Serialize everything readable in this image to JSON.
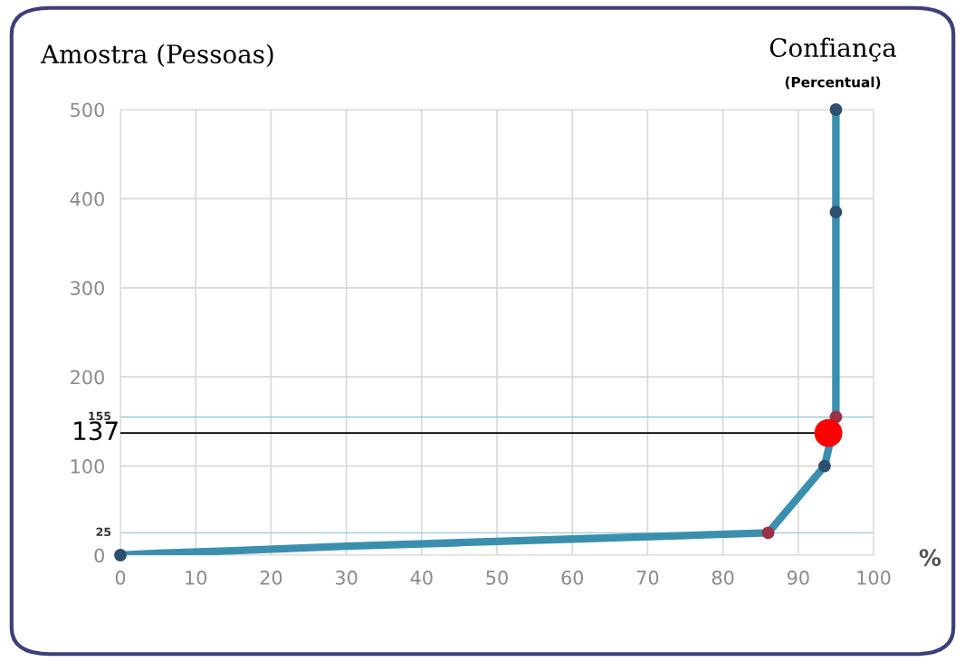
{
  "chart_data": {
    "type": "line",
    "ylabel": "Amostra (Pessoas)",
    "xlabel": "%",
    "annotations": [
      "Confiança",
      "(Percentual)",
      {
        "text": "137",
        "x": 94,
        "y": 137
      }
    ],
    "series": [
      {
        "marker": "none",
        "color": "#3a8fae",
        "x": [
          0,
          5,
          15,
          30,
          45,
          60,
          75,
          86,
          93.5,
          95,
          95,
          95
        ],
        "values": [
          0,
          2,
          5,
          10,
          14,
          18,
          22,
          25,
          100,
          155,
          385,
          500
        ]
      },
      {
        "type": "scatter",
        "marker": "circle",
        "colors": [
          "#2e4f6e",
          "#9b3245",
          "#2e4f6e",
          "#9b3245",
          "#2e4f6e",
          "#2e4f6e"
        ],
        "x": [
          0,
          86,
          93.5,
          95,
          95,
          95
        ],
        "values": [
          0,
          25,
          100,
          155,
          385,
          500
        ]
      },
      {
        "type": "scatter",
        "marker": "circle",
        "color": "#ff0000",
        "x": [
          94
        ],
        "values": [
          137
        ]
      }
    ],
    "ref_lines": [
      {
        "axis": "y",
        "value": 155,
        "label": "155",
        "color": "#9ec9d6"
      },
      {
        "axis": "y",
        "value": 25,
        "label": "25",
        "color": "#9ec9d6"
      }
    ],
    "xlim": [
      0,
      100
    ],
    "ylim": [
      0,
      500
    ],
    "xticks": [
      0,
      10,
      20,
      30,
      40,
      50,
      60,
      70,
      80,
      90,
      100
    ],
    "yticks": [
      0,
      100,
      200,
      300,
      400,
      500
    ],
    "grid": true
  }
}
